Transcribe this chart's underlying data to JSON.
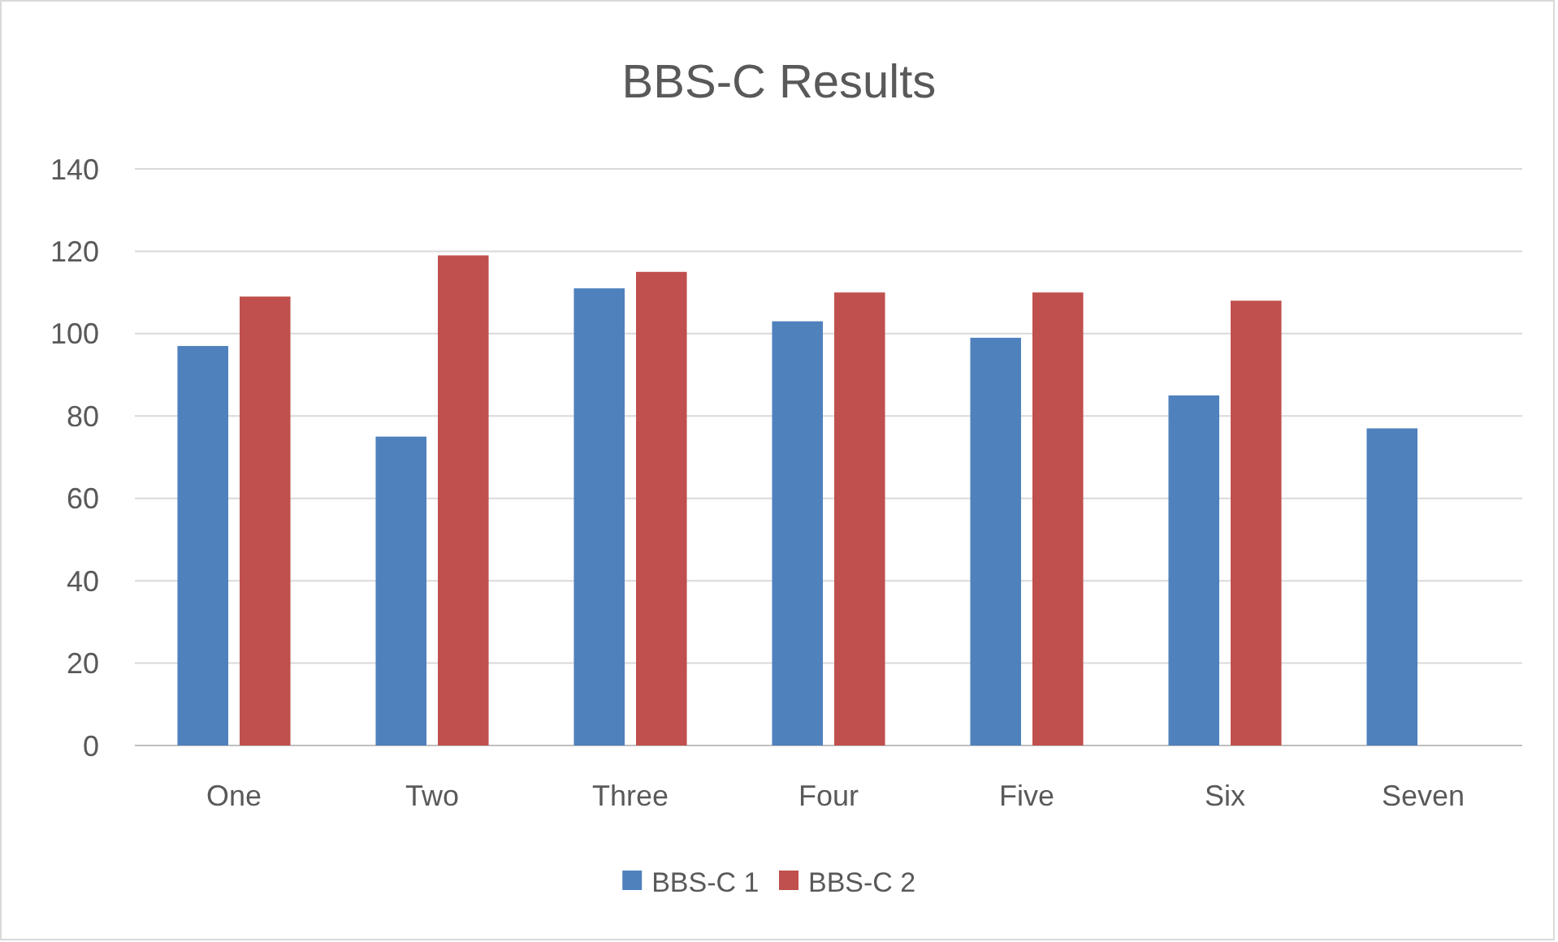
{
  "chart_data": {
    "type": "bar",
    "title": "BBS-C Results",
    "categories": [
      "One",
      "Two",
      "Three",
      "Four",
      "Five",
      "Six",
      "Seven"
    ],
    "series": [
      {
        "name": "BBS-C 1",
        "color": "#4f81bd",
        "values": [
          97,
          75,
          111,
          103,
          99,
          85,
          77
        ]
      },
      {
        "name": "BBS-C 2",
        "color": "#c0504d",
        "values": [
          109,
          119,
          115,
          110,
          110,
          108,
          null
        ]
      }
    ],
    "ylim": [
      0,
      140
    ],
    "yticks": [
      0,
      20,
      40,
      60,
      80,
      100,
      120,
      140
    ],
    "grid": "y",
    "legend": "bottom"
  }
}
